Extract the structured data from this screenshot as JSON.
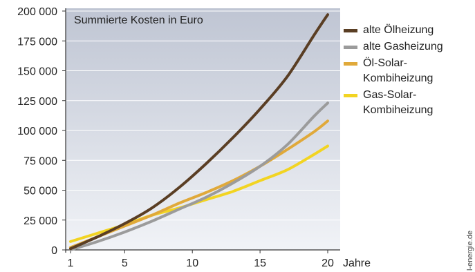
{
  "chart_data": {
    "type": "line",
    "title": "Summierte Kosten in Euro",
    "xlabel": "Jahre",
    "ylabel": "",
    "xlim": [
      1,
      20
    ],
    "ylim": [
      0,
      200000
    ],
    "x_ticks": [
      1,
      5,
      10,
      15,
      20
    ],
    "y_ticks": [
      0,
      25000,
      50000,
      75000,
      100000,
      125000,
      150000,
      175000,
      200000
    ],
    "y_tick_labels": [
      "0",
      "25 000",
      "50 000",
      "75 000",
      "100 000",
      "125 000",
      "150 000",
      "175 000",
      "200 000"
    ],
    "x_tick_labels": [
      "1",
      "5",
      "10",
      "15",
      "20"
    ],
    "legend_position": "right",
    "grid": true,
    "series": [
      {
        "name": "alte Ölheizung",
        "color": "#5a3e24",
        "x": [
          1,
          3,
          5,
          7,
          9,
          11,
          13,
          15,
          17,
          19,
          20
        ],
        "y": [
          1000,
          11000,
          22000,
          35000,
          52000,
          72000,
          94000,
          118000,
          145000,
          180000,
          197000
        ]
      },
      {
        "name": "alte Gasheizung",
        "color": "#9b9b9b",
        "x": [
          1,
          3,
          5,
          7,
          9,
          11,
          13,
          15,
          17,
          19,
          20
        ],
        "y": [
          0,
          7000,
          15000,
          24000,
          34000,
          44000,
          56000,
          70000,
          88000,
          112000,
          123000
        ]
      },
      {
        "name": "Öl-Solar-\nKombiheizung",
        "color": "#e0a93a",
        "x": [
          1,
          3,
          5,
          7,
          9,
          11,
          13,
          15,
          17,
          19,
          20
        ],
        "y": [
          2000,
          11000,
          20000,
          29000,
          39000,
          48000,
          58000,
          70000,
          84000,
          99000,
          108000
        ]
      },
      {
        "name": "Gas-Solar-\nKombiheizung",
        "color": "#f2d422",
        "x": [
          1,
          3,
          5,
          7,
          9,
          11,
          13,
          15,
          17,
          19,
          20
        ],
        "y": [
          7000,
          14000,
          21000,
          29000,
          35000,
          42000,
          49000,
          58000,
          67000,
          80000,
          87000
        ]
      }
    ]
  },
  "watermark": "l-energie.de"
}
